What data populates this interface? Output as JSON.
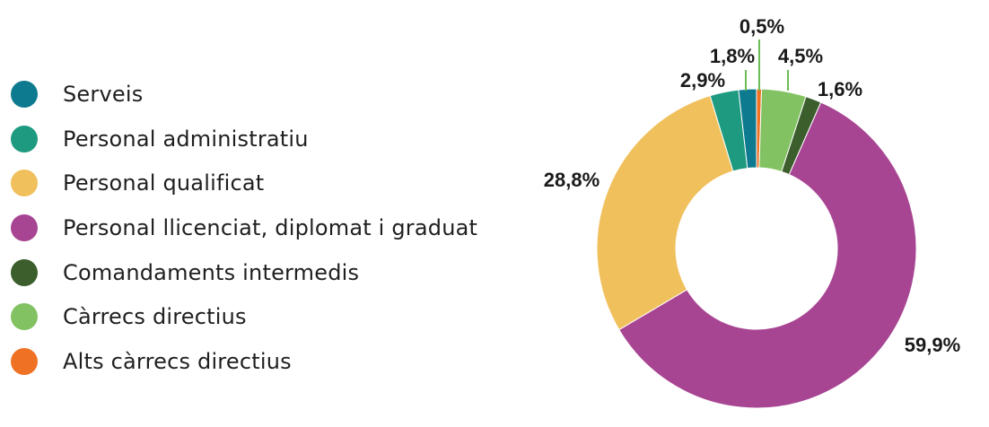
{
  "chart_data": {
    "type": "pie",
    "donut": true,
    "legend_position": "left",
    "slices": [
      {
        "name": "Serveis",
        "value": 1.8,
        "label": "1,8%",
        "color": "#0e7a8f"
      },
      {
        "name": "Personal administratiu",
        "value": 2.9,
        "label": "2,9%",
        "color": "#1d9a80"
      },
      {
        "name": "Personal qualificat",
        "value": 28.8,
        "label": "28,8%",
        "color": "#f0c05c"
      },
      {
        "name": "Personal llicenciat, diplomat i graduat",
        "value": 59.9,
        "label": "59,9%",
        "color": "#a84593"
      },
      {
        "name": "Comandaments intermedis",
        "value": 1.6,
        "label": "1,6%",
        "color": "#3b5e2c"
      },
      {
        "name": "Càrrecs directius",
        "value": 4.5,
        "label": "4,5%",
        "color": "#82c262"
      },
      {
        "name": "Alts càrrecs directius",
        "value": 0.5,
        "label": "0,5%",
        "color": "#ef7124"
      }
    ],
    "draw_order": [
      6,
      5,
      4,
      3,
      2,
      1,
      0
    ],
    "leader_line_color": "#6cbd53"
  }
}
